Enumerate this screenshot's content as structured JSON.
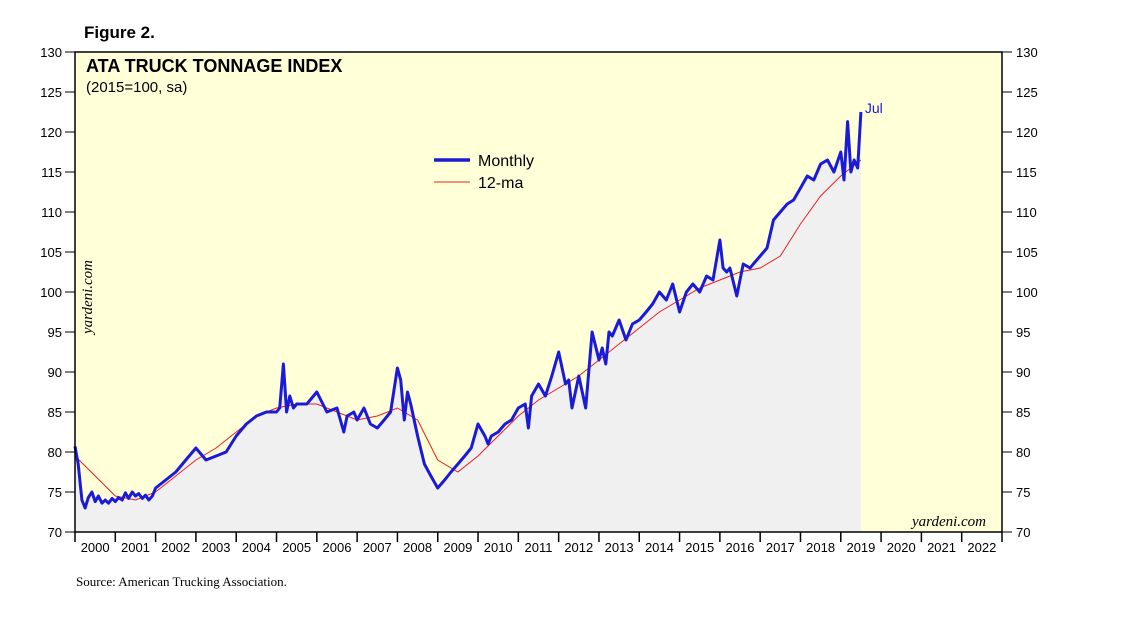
{
  "figure_label": "Figure 2.",
  "source": "Source: American Trucking Association.",
  "watermark": "yardeni.com",
  "colors": {
    "plot_bg": "#ffffd8",
    "area_fill": "#f0f0f0",
    "monthly": "#1a1ad8",
    "ma": "#e82020"
  },
  "chart_data": {
    "type": "line",
    "title": "ATA TRUCK TONNAGE INDEX",
    "subtitle": "(2015=100, sa)",
    "ylim": [
      70,
      130
    ],
    "yticks": [
      70,
      75,
      80,
      85,
      90,
      95,
      100,
      105,
      110,
      115,
      120,
      125,
      130
    ],
    "xlim": [
      2000,
      2023
    ],
    "xtick_labels": [
      "2000",
      "2001",
      "2002",
      "2003",
      "2004",
      "2005",
      "2006",
      "2007",
      "2008",
      "2009",
      "2010",
      "2011",
      "2012",
      "2013",
      "2014",
      "2015",
      "2016",
      "2017",
      "2018",
      "2019",
      "2020",
      "2021",
      "2022"
    ],
    "legend": {
      "position": "upper-center",
      "entries": [
        "Monthly",
        "12-ma"
      ]
    },
    "end_annotation": "Jul",
    "series": [
      {
        "name": "Monthly",
        "x": [
          2000.0,
          2000.08,
          2000.17,
          2000.25,
          2000.33,
          2000.42,
          2000.5,
          2000.58,
          2000.67,
          2000.75,
          2000.83,
          2000.92,
          2001.0,
          2001.08,
          2001.17,
          2001.25,
          2001.33,
          2001.42,
          2001.5,
          2001.58,
          2001.67,
          2001.75,
          2001.83,
          2001.92,
          2002.0,
          2002.25,
          2002.5,
          2002.75,
          2003.0,
          2003.25,
          2003.5,
          2003.75,
          2004.0,
          2004.25,
          2004.5,
          2004.75,
          2005.0,
          2005.08,
          2005.17,
          2005.25,
          2005.33,
          2005.42,
          2005.5,
          2005.75,
          2006.0,
          2006.25,
          2006.5,
          2006.67,
          2006.75,
          2006.92,
          2007.0,
          2007.17,
          2007.33,
          2007.5,
          2007.67,
          2007.83,
          2008.0,
          2008.08,
          2008.17,
          2008.25,
          2008.33,
          2008.5,
          2008.67,
          2008.83,
          2009.0,
          2009.17,
          2009.33,
          2009.5,
          2009.67,
          2009.83,
          2010.0,
          2010.17,
          2010.25,
          2010.33,
          2010.5,
          2010.67,
          2010.83,
          2011.0,
          2011.17,
          2011.25,
          2011.33,
          2011.5,
          2011.67,
          2011.83,
          2012.0,
          2012.17,
          2012.25,
          2012.33,
          2012.5,
          2012.67,
          2012.83,
          2013.0,
          2013.08,
          2013.17,
          2013.25,
          2013.33,
          2013.5,
          2013.67,
          2013.83,
          2014.0,
          2014.17,
          2014.33,
          2014.5,
          2014.67,
          2014.83,
          2015.0,
          2015.17,
          2015.33,
          2015.5,
          2015.67,
          2015.83,
          2016.0,
          2016.08,
          2016.17,
          2016.25,
          2016.42,
          2016.58,
          2016.75,
          2016.83,
          2017.0,
          2017.17,
          2017.33,
          2017.5,
          2017.67,
          2017.83,
          2018.0,
          2018.17,
          2018.33,
          2018.5,
          2018.67,
          2018.83,
          2019.0,
          2019.08,
          2019.17,
          2019.25,
          2019.33,
          2019.42,
          2019.5
        ],
        "values": [
          80.7,
          78.5,
          74.0,
          73.0,
          74.3,
          75.0,
          73.8,
          74.5,
          73.6,
          74.0,
          73.6,
          74.2,
          73.8,
          74.3,
          74.0,
          74.9,
          74.2,
          75.0,
          74.5,
          74.8,
          74.2,
          74.6,
          74.0,
          74.5,
          75.5,
          76.5,
          77.5,
          79.0,
          80.5,
          79.0,
          79.5,
          80.0,
          82.0,
          83.5,
          84.5,
          85.0,
          85.0,
          85.5,
          91.0,
          85.0,
          87.0,
          85.5,
          86.0,
          86.0,
          87.5,
          85.0,
          85.5,
          82.5,
          84.5,
          85.0,
          84.0,
          85.5,
          83.5,
          83.0,
          84.0,
          85.0,
          90.5,
          89.0,
          84.0,
          87.5,
          86.0,
          82.0,
          78.5,
          77.0,
          75.5,
          76.5,
          77.5,
          78.5,
          79.5,
          80.5,
          83.5,
          82.0,
          81.0,
          82.0,
          82.5,
          83.5,
          84.0,
          85.5,
          86.0,
          83.0,
          87.0,
          88.5,
          87.0,
          89.5,
          92.5,
          88.5,
          89.0,
          85.5,
          89.5,
          85.5,
          95.0,
          91.5,
          93.0,
          91.0,
          95.0,
          94.5,
          96.5,
          94.0,
          96.0,
          96.5,
          97.5,
          98.5,
          100.0,
          99.0,
          101.0,
          97.5,
          100.0,
          101.0,
          100.0,
          102.0,
          101.5,
          106.5,
          103.0,
          102.5,
          103.0,
          99.5,
          103.5,
          103.0,
          103.5,
          104.5,
          105.5,
          109.0,
          110.0,
          111.0,
          111.5,
          113.0,
          114.5,
          114.0,
          116.0,
          116.5,
          115.0,
          117.5,
          114.0,
          121.3,
          115.0,
          116.5,
          115.5,
          122.5
        ]
      },
      {
        "name": "12-ma",
        "x": [
          2000.0,
          2000.5,
          2001.0,
          2001.5,
          2002.0,
          2002.5,
          2003.0,
          2003.5,
          2004.0,
          2004.5,
          2005.0,
          2005.5,
          2006.0,
          2006.5,
          2007.0,
          2007.5,
          2008.0,
          2008.5,
          2009.0,
          2009.5,
          2010.0,
          2010.5,
          2011.0,
          2011.5,
          2012.0,
          2012.5,
          2013.0,
          2013.5,
          2014.0,
          2014.5,
          2015.0,
          2015.5,
          2016.0,
          2016.5,
          2017.0,
          2017.5,
          2018.0,
          2018.5,
          2019.0,
          2019.5
        ],
        "values": [
          79.5,
          77.0,
          74.5,
          74.0,
          75.0,
          77.0,
          79.0,
          80.5,
          82.5,
          84.5,
          85.5,
          86.0,
          86.0,
          85.0,
          84.0,
          84.5,
          85.5,
          84.0,
          79.0,
          77.5,
          79.5,
          82.0,
          84.5,
          86.5,
          88.0,
          89.5,
          91.5,
          93.5,
          95.5,
          97.5,
          99.0,
          100.5,
          101.5,
          102.5,
          103.0,
          104.5,
          108.5,
          112.0,
          114.5,
          116.5
        ]
      }
    ]
  }
}
